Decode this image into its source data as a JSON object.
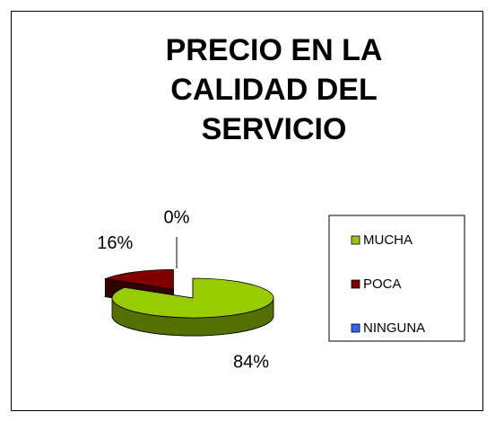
{
  "chart_data": {
    "type": "pie3d",
    "title": "PRECIO EN LA CALIDAD DEL SERVICIO",
    "categories": [
      "MUCHA",
      "POCA",
      "NINGUNA"
    ],
    "values": [
      84,
      16,
      0
    ],
    "value_labels": [
      "84%",
      "16%",
      "0%"
    ],
    "colors": [
      "#99cc00",
      "#800000",
      "#3366ff"
    ],
    "legend": "right"
  }
}
